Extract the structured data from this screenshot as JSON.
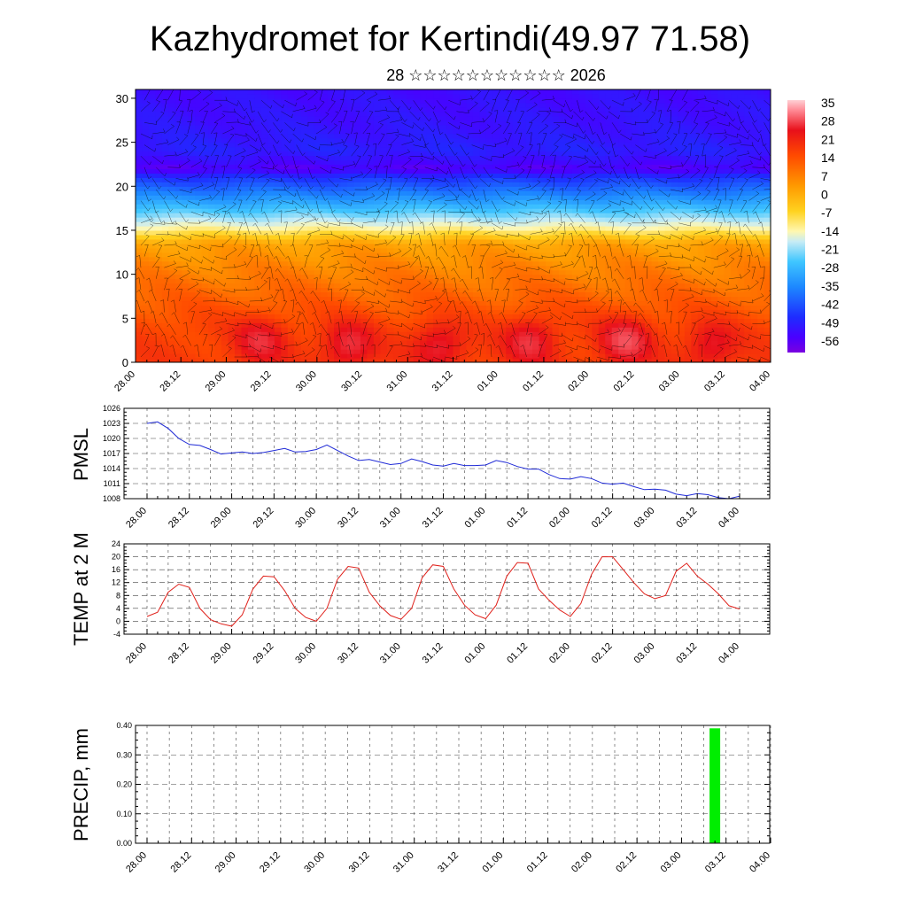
{
  "title": "Kazhydromet for Kertindi(49.97 71.58)",
  "subtitle": "28 ☆☆☆☆☆☆☆☆☆☆☆ 2026",
  "colors": {
    "frame": "#000000",
    "pressure_line": "#1f2ad6",
    "temp_line": "#e0211b",
    "precip_bar": "#00ee00",
    "grid": "#444444"
  },
  "x_tick_labels": [
    "28.00",
    "28.12",
    "29.00",
    "29.12",
    "30.00",
    "30.12",
    "31.00",
    "31.12",
    "01.00",
    "01.12",
    "02.00",
    "02.12",
    "03.00",
    "03.12",
    "04.00"
  ],
  "chart_data": [
    {
      "id": "cross_section",
      "type": "heatmap",
      "description_axis": "model level",
      "ylim": [
        0,
        31
      ],
      "yticks": [
        0,
        5,
        10,
        15,
        20,
        25,
        30
      ],
      "colorbar": {
        "ticks": [
          "35",
          "28",
          "21",
          "14",
          "7",
          "0",
          "-7",
          "-14",
          "-21",
          "-28",
          "-35",
          "-42",
          "-49",
          "-56"
        ],
        "values": [
          35,
          28,
          21,
          14,
          7,
          0,
          -7,
          -14,
          -21,
          -28,
          -35,
          -42,
          -49,
          -56
        ],
        "range": [
          -60,
          38
        ]
      },
      "layers": [
        {
          "level": 0,
          "temp": 12
        },
        {
          "level": 4,
          "temp": 11
        },
        {
          "level": 8,
          "temp": 7
        },
        {
          "level": 11,
          "temp": 4
        },
        {
          "level": 13.5,
          "temp": 1
        },
        {
          "level": 14.5,
          "temp": -6
        },
        {
          "level": 15.5,
          "temp": -14
        },
        {
          "level": 17,
          "temp": -24
        },
        {
          "level": 19,
          "temp": -36
        },
        {
          "level": 21,
          "temp": -47
        },
        {
          "level": 22,
          "temp": -56
        },
        {
          "level": 24,
          "temp": -50
        },
        {
          "level": 27,
          "temp": -52
        },
        {
          "level": 31,
          "temp": -53
        }
      ],
      "warm_cores": [
        {
          "time": 2.75,
          "level": 2.5,
          "delta": 9
        },
        {
          "time": 4.7,
          "level": 2,
          "delta": 10
        },
        {
          "time": 6.7,
          "level": 2,
          "delta": 9
        },
        {
          "time": 8.7,
          "level": 2.5,
          "delta": 10
        },
        {
          "time": 10.8,
          "level": 2.5,
          "delta": 12
        },
        {
          "time": 12.7,
          "level": 2,
          "delta": 8
        }
      ]
    },
    {
      "id": "pmsl",
      "type": "line",
      "ylabel": "PMSL",
      "ylim": [
        1008,
        1026
      ],
      "yticks": [
        "1008",
        "1011",
        "1014",
        "1017",
        "1020",
        "1023",
        "1026"
      ],
      "x": [
        0,
        0.25,
        0.5,
        0.75,
        1,
        1.25,
        1.5,
        1.75,
        2,
        2.25,
        2.5,
        2.75,
        3,
        3.25,
        3.5,
        3.75,
        4,
        4.25,
        4.5,
        4.75,
        5,
        5.25,
        5.5,
        5.75,
        6,
        6.25,
        6.5,
        6.75,
        7,
        7.25,
        7.5,
        7.75,
        8,
        8.25,
        8.5,
        8.75,
        9,
        9.25,
        9.5,
        9.75,
        10,
        10.25,
        10.5,
        10.75,
        11,
        11.25,
        11.5,
        11.75,
        12,
        12.25,
        12.5,
        12.75,
        13,
        13.25,
        13.5,
        13.75,
        14
      ],
      "values": [
        1023,
        1023.3,
        1022,
        1020,
        1018.8,
        1018.6,
        1017.8,
        1016.9,
        1017.1,
        1017.3,
        1017,
        1017.2,
        1017.6,
        1018,
        1017.3,
        1017.4,
        1017.8,
        1018.7,
        1017.6,
        1016.5,
        1015.6,
        1015.8,
        1015.3,
        1014.8,
        1015,
        1015.9,
        1015.4,
        1014.7,
        1014.5,
        1015,
        1014.6,
        1014.6,
        1014.7,
        1015.6,
        1015.2,
        1014.4,
        1013.9,
        1013.9,
        1012.8,
        1012,
        1011.9,
        1012.4,
        1012,
        1011.1,
        1010.9,
        1011.1,
        1010.4,
        1009.8,
        1009.9,
        1009.7,
        1008.9,
        1008.6,
        1009,
        1008.8,
        1008.2,
        1008,
        1008.5
      ]
    },
    {
      "id": "temp2m",
      "type": "line",
      "ylabel": "TEMP at 2 M",
      "ylim": [
        -4,
        24
      ],
      "yticks": [
        "-4",
        "0",
        "4",
        "8",
        "12",
        "16",
        "20",
        "24"
      ],
      "x": [
        0,
        0.25,
        0.5,
        0.75,
        1,
        1.25,
        1.5,
        1.75,
        2,
        2.25,
        2.5,
        2.75,
        3,
        3.25,
        3.5,
        3.75,
        4,
        4.25,
        4.5,
        4.75,
        5,
        5.25,
        5.5,
        5.75,
        6,
        6.25,
        6.5,
        6.75,
        7,
        7.25,
        7.5,
        7.75,
        8,
        8.25,
        8.5,
        8.75,
        9,
        9.25,
        9.5,
        9.75,
        10,
        10.25,
        10.5,
        10.75,
        11,
        11.25,
        11.5,
        11.75,
        12,
        12.25,
        12.5,
        12.75,
        13,
        13.25,
        13.5,
        13.75,
        14
      ],
      "values": [
        1.5,
        2.8,
        9,
        11.5,
        10.5,
        4,
        0.5,
        -0.8,
        -1.5,
        2,
        10,
        14,
        13.8,
        9.5,
        4,
        1.2,
        0,
        4,
        13,
        17,
        16.5,
        9,
        4.8,
        1.8,
        0.6,
        4,
        13.5,
        17.5,
        17,
        10,
        5,
        2,
        0.8,
        5,
        14,
        18.2,
        18,
        10,
        6.5,
        3.5,
        1.5,
        5.5,
        14.5,
        20,
        20,
        16,
        12,
        8.5,
        7,
        8,
        15.5,
        18,
        14,
        11.5,
        8.5,
        4.8,
        3.8
      ]
    },
    {
      "id": "precip",
      "type": "bar",
      "ylabel": "PRECIP, mm",
      "ylim": [
        0,
        0.4
      ],
      "yticks": [
        "0.00",
        "0.10",
        "0.20",
        "0.30",
        "0.40"
      ],
      "x": [
        12.75
      ],
      "values": [
        0.39
      ]
    }
  ]
}
